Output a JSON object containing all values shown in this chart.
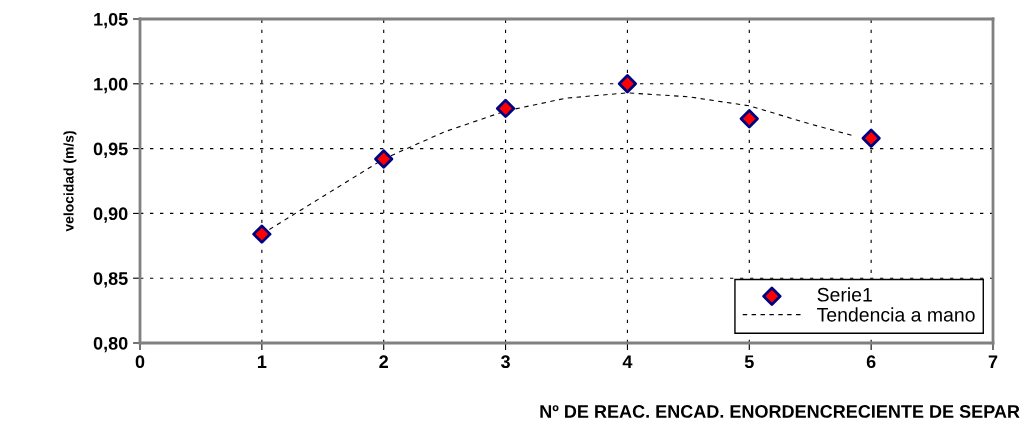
{
  "chart_data": {
    "type": "scatter",
    "xlabel": "Nº DE REAC. ENCAD. ENORDENCRECIENTE DE SEPAR",
    "ylabel": "velocidad (m/s)",
    "series": [
      {
        "name": "Serie1",
        "color": "#ff0000",
        "marker": "diamond",
        "x": [
          1,
          2,
          3,
          4,
          5,
          6
        ],
        "values": [
          0.884,
          0.942,
          0.981,
          1.0,
          0.973,
          0.958
        ]
      },
      {
        "name": "Tendencia a mano",
        "type": "line",
        "color": "#000000",
        "line_style": "dashed",
        "marker": "none",
        "x": [
          1,
          1.5,
          2,
          2.5,
          3,
          3.5,
          4,
          4.5,
          5,
          5.5,
          5.85
        ],
        "values": [
          0.884,
          0.913,
          0.942,
          0.963,
          0.979,
          0.989,
          0.993,
          0.99,
          0.983,
          0.969,
          0.96
        ]
      }
    ],
    "xlim": [
      0,
      7
    ],
    "xticks": [
      0,
      1,
      2,
      3,
      4,
      5,
      6,
      7
    ],
    "ylim": [
      0.8,
      1.05
    ],
    "yticks": [
      {
        "value": 0.8,
        "label": "0,80"
      },
      {
        "value": 0.85,
        "label": "0,85"
      },
      {
        "value": 0.9,
        "label": "0,90"
      },
      {
        "value": 0.95,
        "label": "0,95"
      },
      {
        "value": 1.0,
        "label": "1,00"
      },
      {
        "value": 1.05,
        "label": "1,05"
      }
    ],
    "grid": true,
    "legend": "bottom right"
  }
}
